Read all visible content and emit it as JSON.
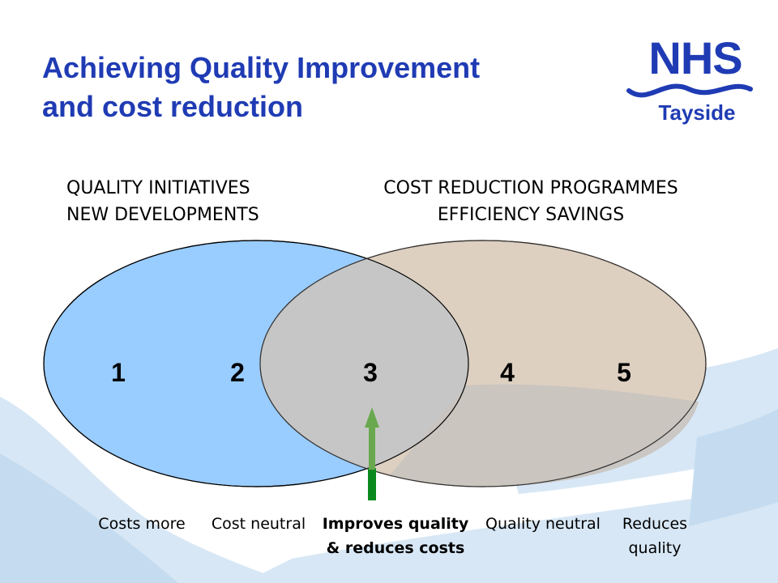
{
  "title": {
    "line1": "Achieving Quality Improvement",
    "line2": "and cost reduction"
  },
  "logo": {
    "word": "NHS",
    "sub": "Tayside"
  },
  "left_set": {
    "line1": "QUALITY INITIATIVES",
    "line2": "NEW DEVELOPMENTS",
    "color": "#99ccff"
  },
  "right_set": {
    "line1": "COST REDUCTION PROGRAMMES",
    "line2": "EFFICIENCY SAVINGS",
    "color": "#ddd0c1"
  },
  "overlap_color": "#c6c6c6",
  "zones": [
    {
      "number": "1",
      "caption_line1": "Costs more",
      "caption_line2": ""
    },
    {
      "number": "2",
      "caption_line1": "Cost neutral",
      "caption_line2": ""
    },
    {
      "number": "3",
      "caption_line1": "Improves quality",
      "caption_line2": "& reduces costs"
    },
    {
      "number": "4",
      "caption_line1": "Quality neutral",
      "caption_line2": ""
    },
    {
      "number": "5",
      "caption_line1": "Reduces",
      "caption_line2": "quality"
    }
  ],
  "arrow_color": "#0a8a1e",
  "brand_color": "#1f3bb4"
}
